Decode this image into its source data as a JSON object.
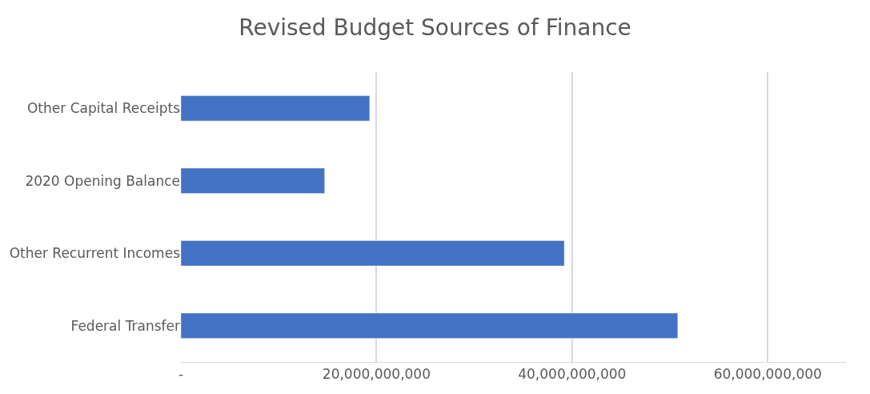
{
  "chart_data": {
    "type": "bar",
    "orientation": "horizontal",
    "title": "Revised Budget Sources of Finance",
    "categories": [
      "Other Capital Receipts",
      "2020 Opening Balance",
      "Other Recurrent Incomes",
      "Federal Transfer"
    ],
    "values": [
      19300000000,
      14700000000,
      39200000000,
      50800000000
    ],
    "color": "#4472c4",
    "xlim": [
      0,
      68000000000
    ],
    "xticks": [
      {
        "value": 0,
        "label": "-"
      },
      {
        "value": 20000000000,
        "label": "20,000,000,000"
      },
      {
        "value": 40000000000,
        "label": "40,000,000,000"
      },
      {
        "value": 60000000000,
        "label": "60,000,000,000"
      }
    ],
    "grid": "x"
  }
}
